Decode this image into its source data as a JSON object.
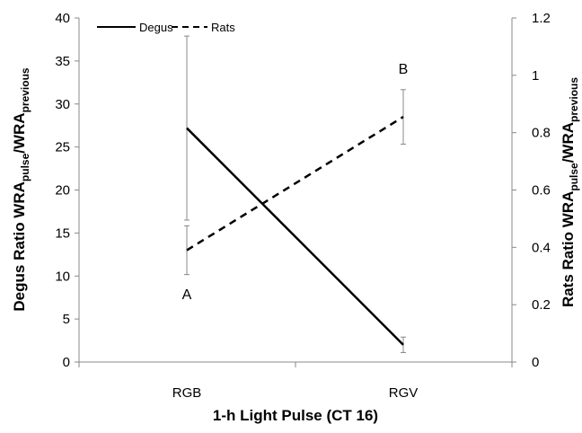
{
  "chart_data": {
    "type": "line",
    "categories": [
      "RGB",
      "RGV"
    ],
    "xlabel": "1-h Light Pulse (CT 16)",
    "ylabel_left": {
      "main": "Degus Ratio WRA",
      "sub1": "pulse",
      "sep": "/WRA",
      "sub2": "previous"
    },
    "ylabel_right": {
      "main": "Rats Ratio WRA",
      "sub1": "pulse",
      "sep": "/WRA",
      "sub2": "previous"
    },
    "y_left": {
      "range": [
        0,
        40
      ],
      "ticks": [
        0,
        5,
        10,
        15,
        20,
        25,
        30,
        35,
        40
      ]
    },
    "y_right": {
      "range": [
        0,
        1.2
      ],
      "ticks": [
        0,
        0.2,
        0.4,
        0.6,
        0.8,
        1,
        1.2
      ]
    },
    "grid": false,
    "legend_position": "top-left",
    "series": [
      {
        "name": "Degus",
        "axis": "left",
        "style": "solid",
        "color": "#000000",
        "values": [
          27.2,
          2.0
        ],
        "errors": [
          10.7,
          0.9
        ]
      },
      {
        "name": "Rats",
        "axis": "right",
        "style": "dashed",
        "color": "#000000",
        "values": [
          0.39,
          0.855
        ],
        "errors": [
          0.085,
          0.095
        ]
      }
    ],
    "annotations": [
      {
        "text": "A",
        "category": "RGB",
        "axis": "left",
        "y": 7.3
      },
      {
        "text": "B",
        "category": "RGV",
        "axis": "left",
        "y": 33.5
      }
    ]
  }
}
